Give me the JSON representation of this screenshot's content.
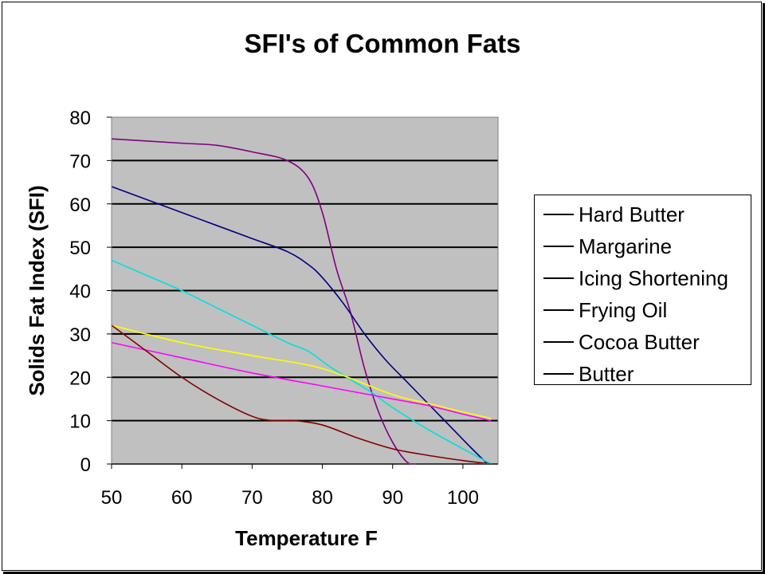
{
  "chart_data": {
    "type": "line",
    "title": "SFI's of Common Fats",
    "xlabel": "Temperature F",
    "ylabel": "Solids Fat Index (SFI)",
    "xlim": [
      50,
      105
    ],
    "ylim": [
      0,
      80
    ],
    "x_ticks": [
      50,
      60,
      70,
      80,
      90,
      100
    ],
    "y_ticks": [
      0,
      10,
      20,
      30,
      40,
      50,
      60,
      70,
      80
    ],
    "grid": "horizontal",
    "plot_background": "#c0c0c0",
    "legend_position": "right",
    "series": [
      {
        "name": "Hard Butter",
        "color": "#800080",
        "points": [
          [
            50,
            75
          ],
          [
            60,
            74
          ],
          [
            65,
            73.5
          ],
          [
            70,
            72
          ],
          [
            75,
            70
          ],
          [
            78,
            66
          ],
          [
            80,
            58
          ],
          [
            82,
            45
          ],
          [
            84,
            35
          ],
          [
            86,
            22
          ],
          [
            88,
            12
          ],
          [
            90,
            5
          ],
          [
            92,
            0.5
          ],
          [
            93.3,
            0
          ]
        ]
      },
      {
        "name": "Margarine",
        "color": "#000080",
        "points": [
          [
            50,
            64
          ],
          [
            60,
            58
          ],
          [
            65,
            55
          ],
          [
            70,
            52
          ],
          [
            75,
            49
          ],
          [
            78,
            46
          ],
          [
            80,
            43
          ],
          [
            83,
            37
          ],
          [
            86,
            30
          ],
          [
            89,
            24
          ],
          [
            92,
            19
          ],
          [
            95,
            14
          ],
          [
            98,
            9
          ],
          [
            101,
            4
          ],
          [
            103.5,
            0
          ]
        ]
      },
      {
        "name": "Icing Shortening",
        "color": "#00e0e0",
        "points": [
          [
            50,
            47
          ],
          [
            55,
            43.5
          ],
          [
            60,
            40
          ],
          [
            65,
            36
          ],
          [
            70,
            32
          ],
          [
            75,
            28
          ],
          [
            78,
            26
          ],
          [
            81,
            22.5
          ],
          [
            84,
            19.5
          ],
          [
            87,
            16.5
          ],
          [
            90,
            13
          ],
          [
            95,
            8
          ],
          [
            100,
            3.5
          ],
          [
            104,
            0
          ]
        ]
      },
      {
        "name": "Frying Oil",
        "color": "#ffff00",
        "points": [
          [
            50,
            32
          ],
          [
            60,
            28
          ],
          [
            70,
            25
          ],
          [
            80,
            22
          ],
          [
            90,
            16
          ],
          [
            95,
            14
          ],
          [
            100,
            12
          ],
          [
            104,
            10.5
          ]
        ]
      },
      {
        "name": "Cocoa Butter",
        "color": "#ff00ff",
        "points": [
          [
            50,
            28
          ],
          [
            60,
            24.5
          ],
          [
            70,
            21
          ],
          [
            80,
            18
          ],
          [
            90,
            15
          ],
          [
            95,
            13.5
          ],
          [
            100,
            11.5
          ],
          [
            104,
            10
          ]
        ]
      },
      {
        "name": "Butter",
        "color": "#800000",
        "points": [
          [
            50,
            32
          ],
          [
            55,
            26
          ],
          [
            60,
            20
          ],
          [
            65,
            15
          ],
          [
            70,
            11
          ],
          [
            73,
            10
          ],
          [
            76,
            10
          ],
          [
            80,
            9
          ],
          [
            85,
            6
          ],
          [
            90,
            3.5
          ],
          [
            95,
            2
          ],
          [
            100,
            0.8
          ],
          [
            104,
            0
          ]
        ]
      }
    ]
  }
}
